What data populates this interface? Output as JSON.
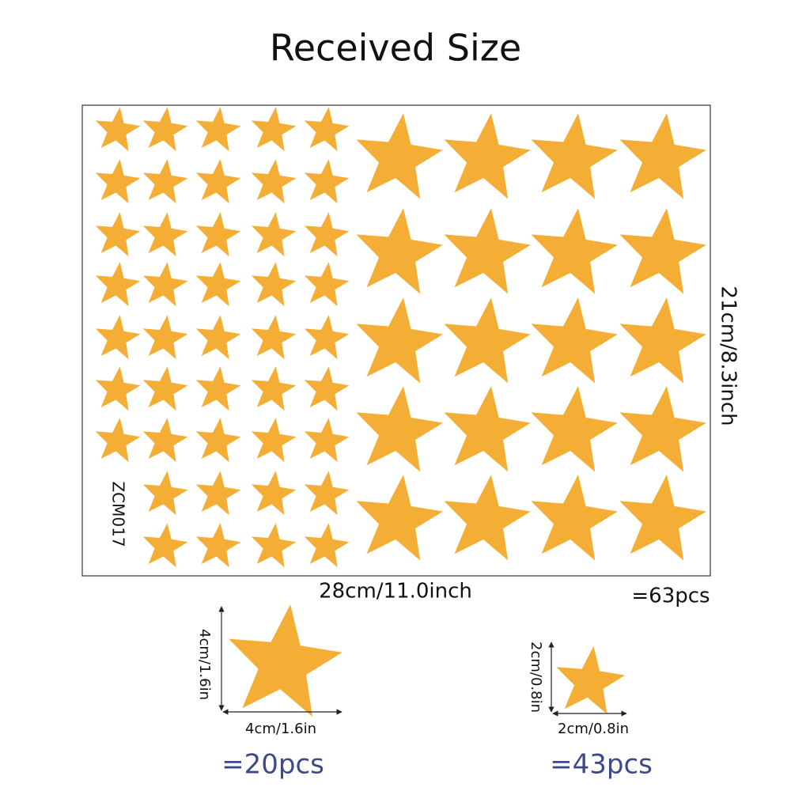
{
  "title": "Received Size",
  "sheet": {
    "code": "ZCM017",
    "height_label": "21cm/8.3inch",
    "width_label": "28cm/11.0inch",
    "total": "=63pcs"
  },
  "large_star": {
    "height_label": "4cm/1.6in",
    "width_label": "4cm/1.6in",
    "count": "=20pcs"
  },
  "small_star": {
    "height_label": "2cm/0.8in",
    "width_label": "2cm/0.8in",
    "count": "=43pcs"
  }
}
